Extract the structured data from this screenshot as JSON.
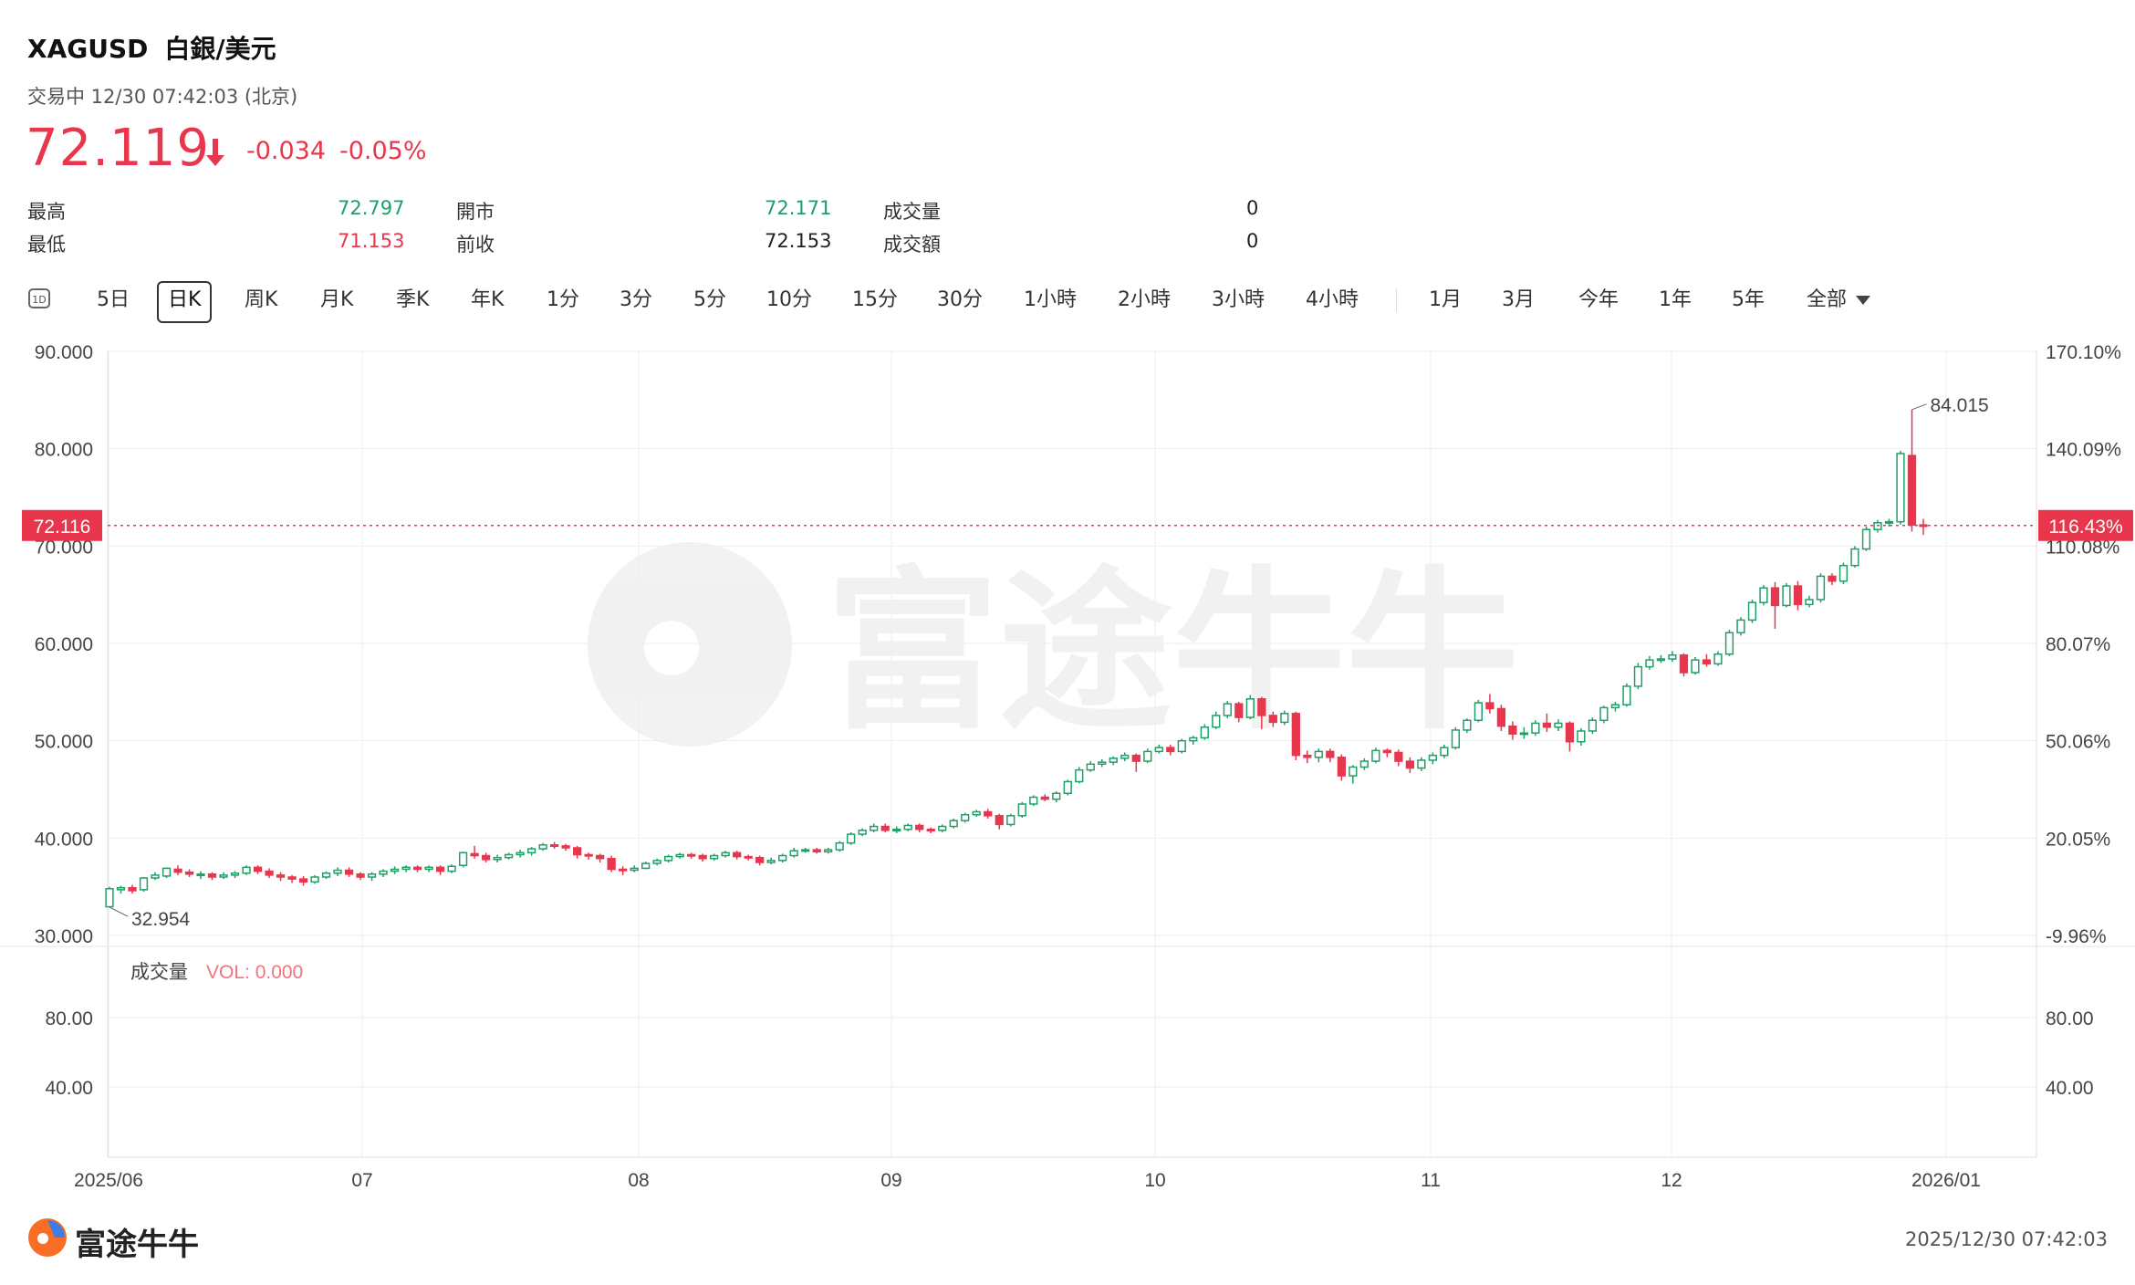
{
  "header": {
    "symbol": "XAGUSD",
    "name": "白銀/美元",
    "status": "交易中 12/30 07:42:03 (北京)",
    "price": "72.119",
    "change": "-0.034",
    "change_pct": "-0.05%"
  },
  "stats": {
    "high_label": "最高",
    "high_value": "72.797",
    "low_label": "最低",
    "low_value": "71.153",
    "open_label": "開市",
    "open_value": "72.171",
    "prev_close_label": "前收",
    "prev_close_value": "72.153",
    "volume_label": "成交量",
    "volume_value": "0",
    "turnover_label": "成交額",
    "turnover_value": "0"
  },
  "tabs": {
    "icon_label": "1D",
    "items": [
      "5日",
      "日K",
      "周K",
      "月K",
      "季K",
      "年K",
      "1分",
      "3分",
      "5分",
      "10分",
      "15分",
      "30分",
      "1小時",
      "2小時",
      "3小時",
      "4小時"
    ],
    "range_items": [
      "1月",
      "3月",
      "今年",
      "1年",
      "5年",
      "全部"
    ],
    "active": "日K"
  },
  "colors": {
    "up": "#1ea068",
    "down": "#e8364d",
    "grid": "#eeeeee"
  },
  "chart_data": {
    "type": "candlestick",
    "y_left": {
      "min": 30,
      "max": 90,
      "ticks": [
        "90.000",
        "80.000",
        "70.000",
        "60.000",
        "50.000",
        "40.000",
        "30.000"
      ]
    },
    "y_right": {
      "ticks": [
        "170.10%",
        "140.09%",
        "110.08%",
        "80.07%",
        "50.06%",
        "20.05%",
        "-9.96%"
      ]
    },
    "x_labels": [
      "2025/06",
      "07",
      "08",
      "09",
      "10",
      "11",
      "12",
      "2026/01"
    ],
    "current_price_label": "72.116",
    "current_pct_label": "116.43%",
    "current_price": 72.116,
    "max_label": "84.015",
    "min_label": "32.954",
    "volume": {
      "title": "成交量",
      "vol_label": "VOL: 0.000",
      "ticks": [
        "80.00",
        "40.00"
      ]
    },
    "candles": [
      [
        32.95,
        34.8,
        32.9,
        35.0
      ],
      [
        34.7,
        34.9,
        34.3,
        35.1
      ],
      [
        34.9,
        34.6,
        34.3,
        35.2
      ],
      [
        34.7,
        35.9,
        34.5,
        36.0
      ],
      [
        35.9,
        36.2,
        35.7,
        36.5
      ],
      [
        36.1,
        36.9,
        35.9,
        37.0
      ],
      [
        36.8,
        36.5,
        36.2,
        37.2
      ],
      [
        36.5,
        36.3,
        36.0,
        36.8
      ],
      [
        36.3,
        36.3,
        35.8,
        36.6
      ],
      [
        36.3,
        36.0,
        35.7,
        36.5
      ],
      [
        36.0,
        36.2,
        35.8,
        36.5
      ],
      [
        36.2,
        36.4,
        35.9,
        36.6
      ],
      [
        36.4,
        37.0,
        36.2,
        37.2
      ],
      [
        37.0,
        36.6,
        36.3,
        37.2
      ],
      [
        36.6,
        36.2,
        35.9,
        36.9
      ],
      [
        36.2,
        36.0,
        35.6,
        36.5
      ],
      [
        36.0,
        35.8,
        35.4,
        36.2
      ],
      [
        35.8,
        35.5,
        35.1,
        36.1
      ],
      [
        35.5,
        36.0,
        35.3,
        36.2
      ],
      [
        36.0,
        36.4,
        35.8,
        36.6
      ],
      [
        36.4,
        36.7,
        36.1,
        37.0
      ],
      [
        36.7,
        36.3,
        36.0,
        37.0
      ],
      [
        36.3,
        36.0,
        35.7,
        36.5
      ],
      [
        36.0,
        36.3,
        35.6,
        36.5
      ],
      [
        36.3,
        36.6,
        36.0,
        36.8
      ],
      [
        36.6,
        36.8,
        36.3,
        37.1
      ],
      [
        36.8,
        37.0,
        36.5,
        37.2
      ],
      [
        37.0,
        36.8,
        36.5,
        37.2
      ],
      [
        36.8,
        37.0,
        36.5,
        37.2
      ],
      [
        37.0,
        36.6,
        36.2,
        37.2
      ],
      [
        36.6,
        37.1,
        36.4,
        37.3
      ],
      [
        37.2,
        38.5,
        37.0,
        38.6
      ],
      [
        38.4,
        38.2,
        37.9,
        39.2
      ],
      [
        38.2,
        37.8,
        37.5,
        38.5
      ],
      [
        37.8,
        38.0,
        37.5,
        38.3
      ],
      [
        38.0,
        38.3,
        37.8,
        38.5
      ],
      [
        38.3,
        38.5,
        38.0,
        38.8
      ],
      [
        38.5,
        38.9,
        38.2,
        39.1
      ],
      [
        38.9,
        39.3,
        38.7,
        39.5
      ],
      [
        39.3,
        39.2,
        38.9,
        39.6
      ],
      [
        39.2,
        39.0,
        38.7,
        39.4
      ],
      [
        39.0,
        38.3,
        37.9,
        39.2
      ],
      [
        38.3,
        38.2,
        37.8,
        38.5
      ],
      [
        38.2,
        37.9,
        37.5,
        38.4
      ],
      [
        37.9,
        36.8,
        36.5,
        38.2
      ],
      [
        36.8,
        36.7,
        36.2,
        37.1
      ],
      [
        36.7,
        36.9,
        36.5,
        37.2
      ],
      [
        36.9,
        37.4,
        36.8,
        37.6
      ],
      [
        37.4,
        37.7,
        37.2,
        37.9
      ],
      [
        37.7,
        38.1,
        37.5,
        38.3
      ],
      [
        38.1,
        38.3,
        37.9,
        38.5
      ],
      [
        38.3,
        38.2,
        37.9,
        38.5
      ],
      [
        38.2,
        37.9,
        37.6,
        38.4
      ],
      [
        37.9,
        38.2,
        37.7,
        38.4
      ],
      [
        38.2,
        38.5,
        38.0,
        38.7
      ],
      [
        38.5,
        38.1,
        37.8,
        38.7
      ],
      [
        38.1,
        38.0,
        37.7,
        38.3
      ],
      [
        38.0,
        37.5,
        37.2,
        38.2
      ],
      [
        37.5,
        37.7,
        37.3,
        38.0
      ],
      [
        37.7,
        38.2,
        37.5,
        38.4
      ],
      [
        38.2,
        38.7,
        38.0,
        39.0
      ],
      [
        38.7,
        38.8,
        38.5,
        39.0
      ],
      [
        38.8,
        38.6,
        38.4,
        39.0
      ],
      [
        38.6,
        38.8,
        38.4,
        39.0
      ],
      [
        38.8,
        39.5,
        38.6,
        39.7
      ],
      [
        39.5,
        40.4,
        39.3,
        40.6
      ],
      [
        40.4,
        40.8,
        40.2,
        41.0
      ],
      [
        40.8,
        41.2,
        40.6,
        41.5
      ],
      [
        41.2,
        40.8,
        40.6,
        41.5
      ],
      [
        40.8,
        40.9,
        40.5,
        41.2
      ],
      [
        40.9,
        41.3,
        40.7,
        41.5
      ],
      [
        41.3,
        40.9,
        40.6,
        41.5
      ],
      [
        40.9,
        40.8,
        40.5,
        41.1
      ],
      [
        40.8,
        41.2,
        40.6,
        41.4
      ],
      [
        41.2,
        41.8,
        41.0,
        42.0
      ],
      [
        41.8,
        42.4,
        41.6,
        42.6
      ],
      [
        42.4,
        42.7,
        42.2,
        42.9
      ],
      [
        42.7,
        42.3,
        42.0,
        43.0
      ],
      [
        42.3,
        41.4,
        40.9,
        42.5
      ],
      [
        41.4,
        42.3,
        41.2,
        42.5
      ],
      [
        42.3,
        43.5,
        42.1,
        43.7
      ],
      [
        43.5,
        44.2,
        43.3,
        44.4
      ],
      [
        44.2,
        44.0,
        43.8,
        44.5
      ],
      [
        44.0,
        44.6,
        43.7,
        44.8
      ],
      [
        44.6,
        45.8,
        44.4,
        46.0
      ],
      [
        45.8,
        47.0,
        45.6,
        47.3
      ],
      [
        47.0,
        47.6,
        46.8,
        47.9
      ],
      [
        47.6,
        47.8,
        47.3,
        48.1
      ],
      [
        47.8,
        48.2,
        47.5,
        48.4
      ],
      [
        48.2,
        48.5,
        47.9,
        48.8
      ],
      [
        48.5,
        47.9,
        46.8,
        48.7
      ],
      [
        47.9,
        48.9,
        47.7,
        49.2
      ],
      [
        48.9,
        49.3,
        48.7,
        49.6
      ],
      [
        49.3,
        48.9,
        48.5,
        49.6
      ],
      [
        48.9,
        50.0,
        48.7,
        50.2
      ],
      [
        50.0,
        50.3,
        49.6,
        50.5
      ],
      [
        50.3,
        51.4,
        50.1,
        51.7
      ],
      [
        51.4,
        52.6,
        51.2,
        53.0
      ],
      [
        52.6,
        53.8,
        52.3,
        54.1
      ],
      [
        53.8,
        52.4,
        51.9,
        54.0
      ],
      [
        52.4,
        54.3,
        52.2,
        54.7
      ],
      [
        54.3,
        52.6,
        51.2,
        54.5
      ],
      [
        52.6,
        51.9,
        51.4,
        53.0
      ],
      [
        51.9,
        52.8,
        51.6,
        53.1
      ],
      [
        52.8,
        48.5,
        48.0,
        53.0
      ],
      [
        48.5,
        48.3,
        47.7,
        49.0
      ],
      [
        48.3,
        48.9,
        47.8,
        49.2
      ],
      [
        48.9,
        48.3,
        47.8,
        49.2
      ],
      [
        48.3,
        46.4,
        45.9,
        48.6
      ],
      [
        46.4,
        47.3,
        45.6,
        47.5
      ],
      [
        47.3,
        47.9,
        47.0,
        48.2
      ],
      [
        47.9,
        49.0,
        47.7,
        49.3
      ],
      [
        49.0,
        48.8,
        48.3,
        49.2
      ],
      [
        48.8,
        47.9,
        47.4,
        49.1
      ],
      [
        47.9,
        47.2,
        46.7,
        48.3
      ],
      [
        47.2,
        48.0,
        46.9,
        48.3
      ],
      [
        48.0,
        48.5,
        47.6,
        48.8
      ],
      [
        48.5,
        49.3,
        48.2,
        49.6
      ],
      [
        49.3,
        51.1,
        49.1,
        51.4
      ],
      [
        51.1,
        52.1,
        50.8,
        52.3
      ],
      [
        52.1,
        53.9,
        51.9,
        54.2
      ],
      [
        53.9,
        53.3,
        52.8,
        54.8
      ],
      [
        53.3,
        51.5,
        51.0,
        53.7
      ],
      [
        51.5,
        50.7,
        50.1,
        52.0
      ],
      [
        50.7,
        50.8,
        50.2,
        51.4
      ],
      [
        50.8,
        51.8,
        50.5,
        52.1
      ],
      [
        51.8,
        51.4,
        50.9,
        52.8
      ],
      [
        51.4,
        51.8,
        51.0,
        52.2
      ],
      [
        51.8,
        49.9,
        48.9,
        52.0
      ],
      [
        49.9,
        51.0,
        49.5,
        51.3
      ],
      [
        51.0,
        52.1,
        50.7,
        52.4
      ],
      [
        52.1,
        53.4,
        51.8,
        53.6
      ],
      [
        53.4,
        53.7,
        53.0,
        54.0
      ],
      [
        53.7,
        55.6,
        53.5,
        55.9
      ],
      [
        55.6,
        57.6,
        55.3,
        58.0
      ],
      [
        57.6,
        58.3,
        57.3,
        58.7
      ],
      [
        58.3,
        58.4,
        58.0,
        58.8
      ],
      [
        58.4,
        58.8,
        58.1,
        59.2
      ],
      [
        58.8,
        57.0,
        56.6,
        59.0
      ],
      [
        57.0,
        58.3,
        56.8,
        58.6
      ],
      [
        58.3,
        57.9,
        57.6,
        58.9
      ],
      [
        57.9,
        58.9,
        57.7,
        59.2
      ],
      [
        58.9,
        61.1,
        58.7,
        61.4
      ],
      [
        61.1,
        62.4,
        60.8,
        62.7
      ],
      [
        62.4,
        64.2,
        62.1,
        64.5
      ],
      [
        64.2,
        65.7,
        63.9,
        66.0
      ],
      [
        65.7,
        63.9,
        61.5,
        66.3
      ],
      [
        63.9,
        65.9,
        63.7,
        66.2
      ],
      [
        65.9,
        64.0,
        63.4,
        66.4
      ],
      [
        64.0,
        64.5,
        63.7,
        64.9
      ],
      [
        64.5,
        66.9,
        64.2,
        67.2
      ],
      [
        66.9,
        66.4,
        66.0,
        67.2
      ],
      [
        66.4,
        68.0,
        66.1,
        68.3
      ],
      [
        68.0,
        69.7,
        67.8,
        70.0
      ],
      [
        69.7,
        71.7,
        69.5,
        72.0
      ],
      [
        71.7,
        72.4,
        71.4,
        72.7
      ],
      [
        72.4,
        72.5,
        72.0,
        72.8
      ],
      [
        72.5,
        79.5,
        72.2,
        79.8
      ],
      [
        79.3,
        72.17,
        71.5,
        84.015
      ],
      [
        72.171,
        72.119,
        71.153,
        72.797
      ]
    ]
  }
}
